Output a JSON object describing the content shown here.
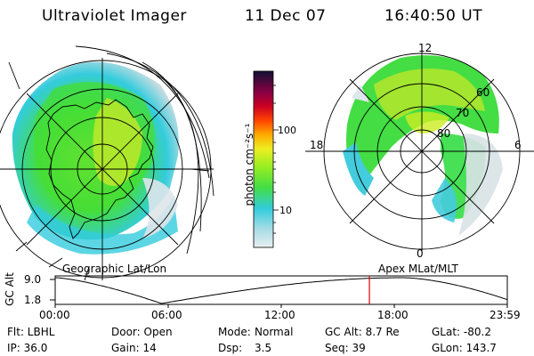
{
  "header": {
    "instrument": "Ultraviolet Imager",
    "date": "11 Dec 07",
    "time": "16:40:50 UT"
  },
  "colorbar": {
    "label": "photon cm⁻²s⁻¹",
    "ticks": [
      "100",
      "10"
    ]
  },
  "left_panel": {
    "caption": "Geographic Lat/Lon"
  },
  "right_panel": {
    "caption": "Apex MLat/MLT",
    "hour_labels": {
      "top": "12",
      "bottom": "0",
      "left": "18",
      "right": "6"
    },
    "lat_labels": [
      "60",
      "70",
      "80"
    ]
  },
  "timeline": {
    "axis_label": "GC Alt",
    "y_ticks": [
      "9.0",
      "1.8"
    ],
    "x_ticks": [
      "00:00",
      "06:00",
      "12:00",
      "18:00",
      "23:59"
    ],
    "current_time_fraction": 0.695
  },
  "footer": {
    "row1": {
      "filter": "Flt: LBHL",
      "door": "Door: Open",
      "mode_label": "Mode:",
      "mode_value": "Normal",
      "gc_alt": "GC Alt: 8.7 Re",
      "glat": "GLat: -80.2"
    },
    "row2": {
      "ip": "IP: 36.0",
      "gain": "Gain: 14",
      "dsp_label": "Dsp:",
      "dsp_value": "3.5",
      "seq": "Seq: 39",
      "glon": "GLon: 143.7"
    }
  },
  "colors": {
    "aurora_green": "#33dd33",
    "aurora_yellow": "#ccee22",
    "aurora_cyan": "#44ccdd",
    "aurora_light": "#ccdde0",
    "marker": "#dd0000"
  }
}
